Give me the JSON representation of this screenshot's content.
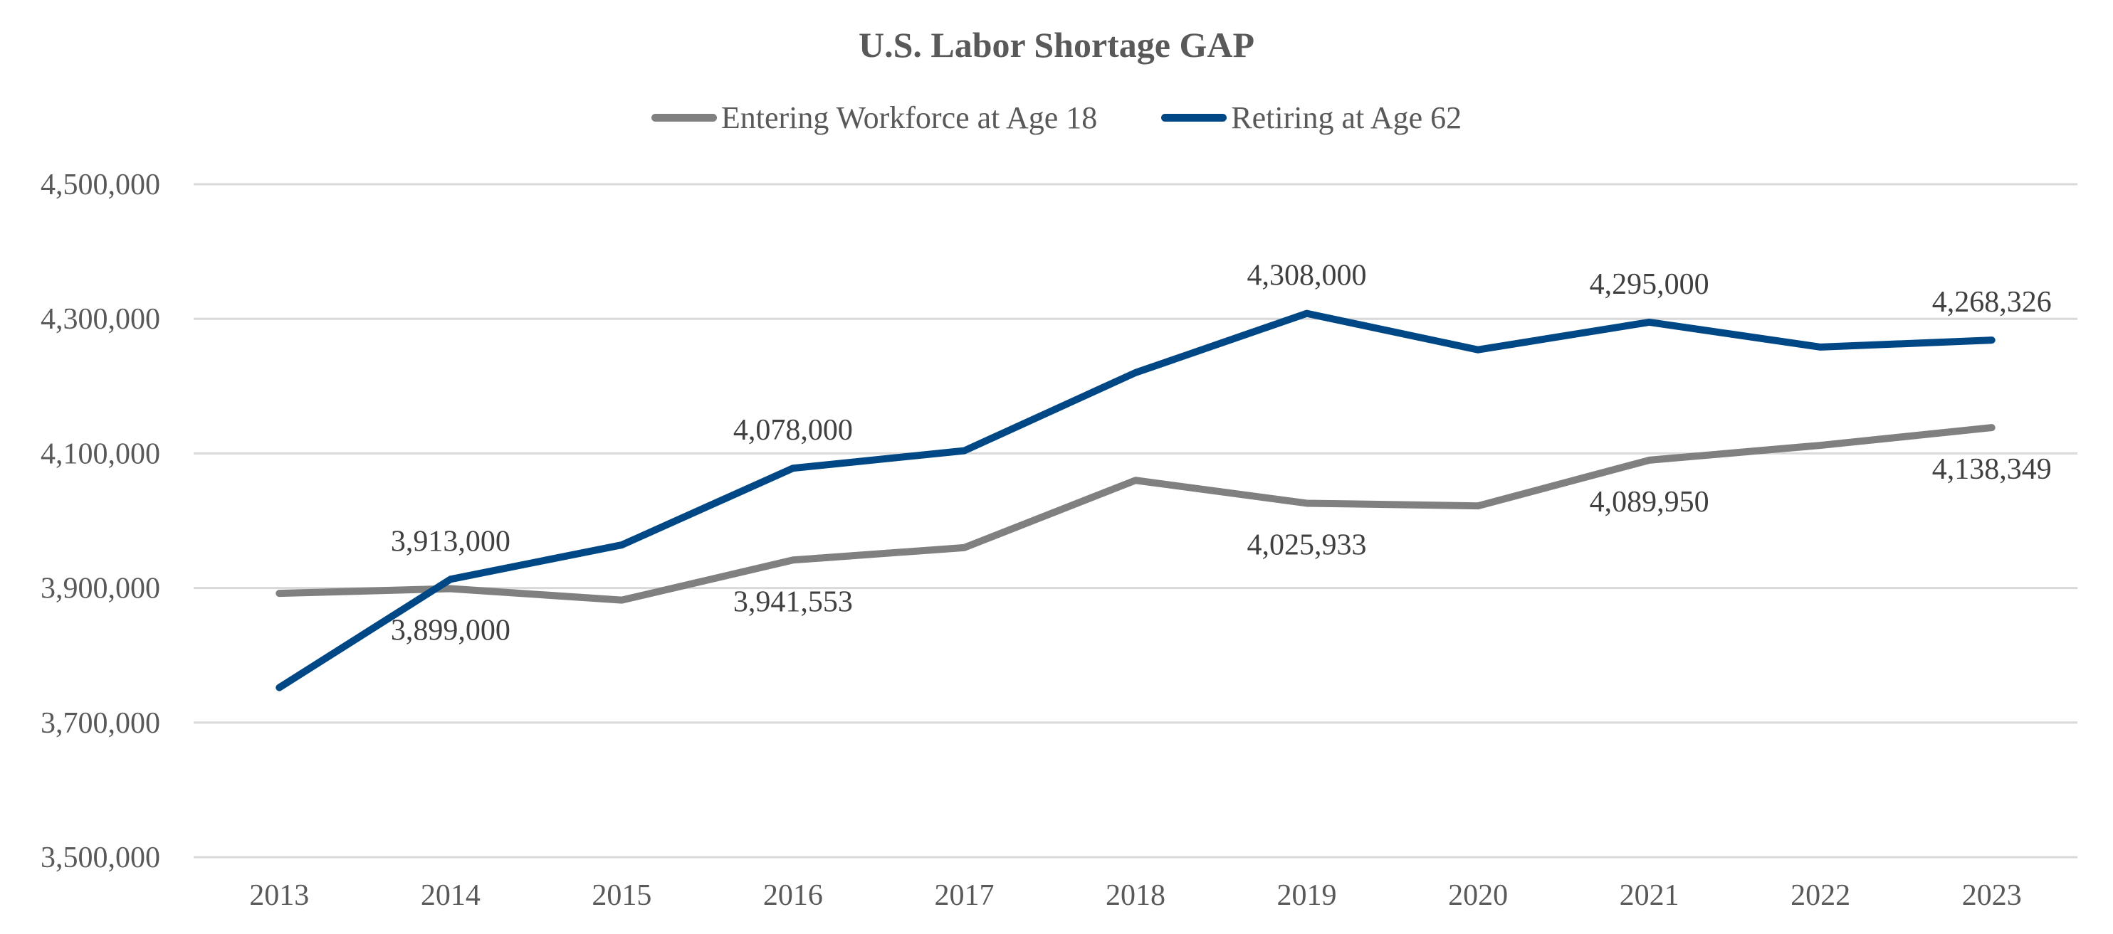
{
  "chart_data": {
    "type": "line",
    "title": "U.S. Labor Shortage GAP",
    "xlabel": "",
    "ylabel": "",
    "categories": [
      "2013",
      "2014",
      "2015",
      "2016",
      "2017",
      "2018",
      "2019",
      "2020",
      "2021",
      "2022",
      "2023"
    ],
    "ylim": [
      3500000,
      4500000
    ],
    "yticks": [
      3500000,
      3700000,
      3900000,
      4100000,
      4300000,
      4500000
    ],
    "ytick_labels": [
      "3,500,000",
      "3,700,000",
      "3,900,000",
      "4,100,000",
      "4,300,000",
      "4,500,000"
    ],
    "grid": true,
    "legend_position": "top-center",
    "series": [
      {
        "name": "Entering Workforce at Age 18",
        "color": "#808080",
        "values": [
          3892000,
          3899000,
          3882000,
          3941553,
          3960000,
          4060000,
          4025933,
          4022000,
          4089950,
          4112000,
          4138349
        ],
        "labels": [
          null,
          "3,899,000",
          null,
          "3,941,553",
          null,
          null,
          "4,025,933",
          null,
          "4,089,950",
          null,
          "4,138,349"
        ],
        "label_position": "below"
      },
      {
        "name": "Retiring at Age 62",
        "color": "#004785",
        "values": [
          3752000,
          3913000,
          3964000,
          4078000,
          4104000,
          4220000,
          4308000,
          4254000,
          4295000,
          4258000,
          4268326
        ],
        "labels": [
          null,
          "3,913,000",
          null,
          "4,078,000",
          null,
          null,
          "4,308,000",
          null,
          "4,295,000",
          null,
          "4,268,326"
        ],
        "label_position": "above"
      }
    ]
  }
}
